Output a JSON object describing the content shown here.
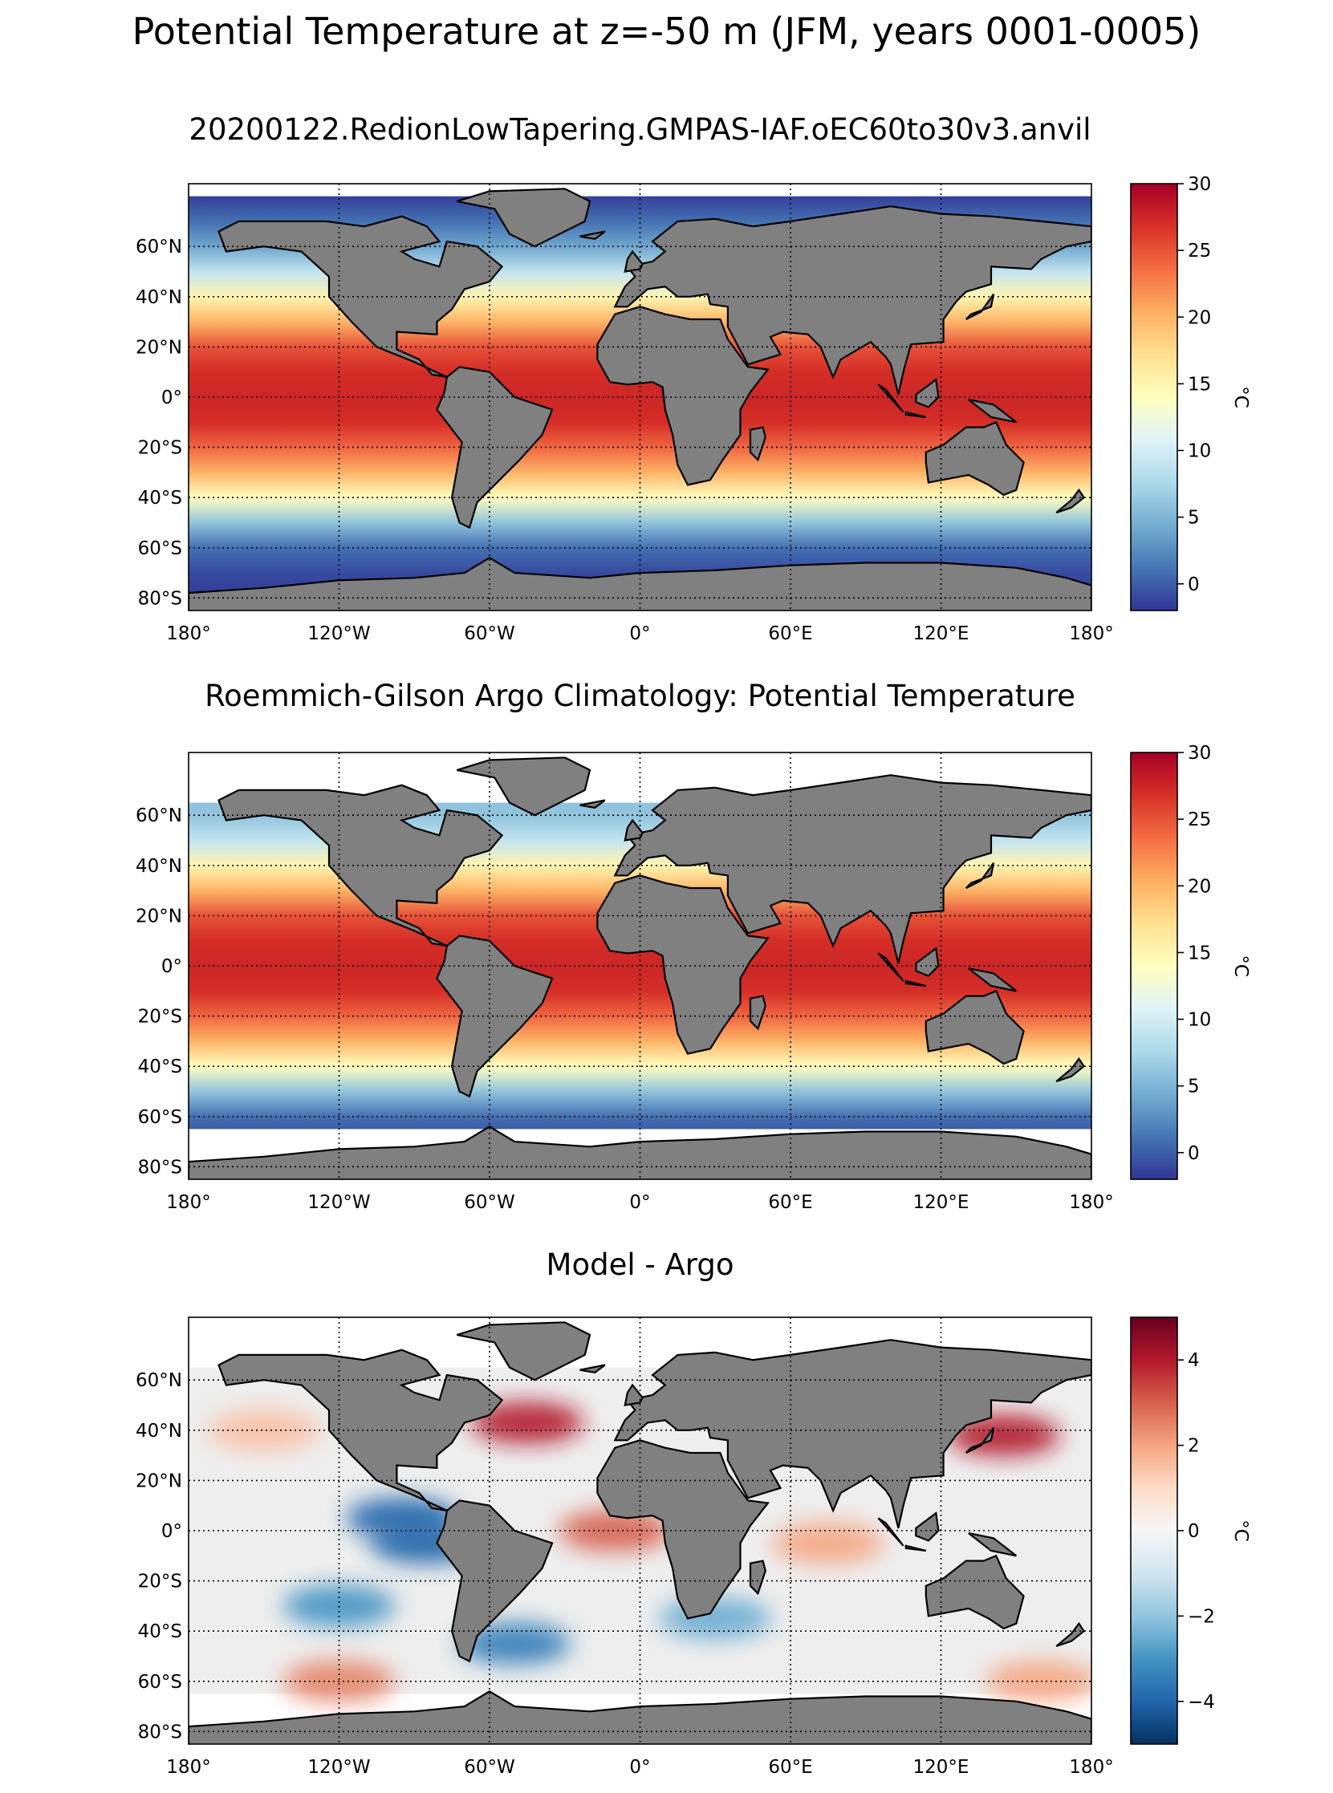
{
  "suptitle": "Potential Temperature at z=-50 m (JFM, years 0001-0005)",
  "panels": [
    {
      "title": "20200122.RedionLowTapering.GMPAS-IAF.oEC60to30v3.anvil"
    },
    {
      "title": "Roemmich-Gilson Argo Climatology: Potential Temperature"
    },
    {
      "title": "Model - Argo"
    }
  ],
  "chart_data": [
    {
      "type": "heatmap",
      "title": "20200122.RedionLowTapering.GMPAS-IAF.oEC60to30v3.anvil",
      "xlim": [
        -180,
        180
      ],
      "ylim": [
        -85,
        85
      ],
      "x_ticks": [
        -180,
        -120,
        -60,
        0,
        60,
        120,
        180
      ],
      "x_tick_labels": [
        "180°",
        "120°W",
        "60°W",
        "0°",
        "60°E",
        "120°E",
        "180°"
      ],
      "y_ticks": [
        60,
        40,
        20,
        0,
        -20,
        -40,
        -60,
        -80
      ],
      "y_tick_labels": [
        "60°N",
        "40°N",
        "20°N",
        "0°",
        "20°S",
        "40°S",
        "60°S",
        "80°S"
      ],
      "grid": true,
      "land_color": "#808080",
      "colormap": "RdYlBu_r",
      "colorbar": {
        "label": "°C",
        "vmin": -2,
        "vmax": 30,
        "ticks": [
          30,
          25,
          20,
          15,
          10,
          5,
          0
        ],
        "tick_labels": [
          "30",
          "25",
          "20",
          "15",
          "10",
          "5",
          "0"
        ]
      },
      "zonal_profile": {
        "lat": [
          80,
          70,
          60,
          50,
          40,
          30,
          20,
          10,
          0,
          -10,
          -20,
          -30,
          -40,
          -50,
          -60,
          -70,
          -80
        ],
        "value": [
          -1.5,
          1,
          4,
          9,
          15,
          20,
          25,
          27,
          27.5,
          27,
          24,
          20,
          14,
          6,
          1,
          -1,
          -1.8
        ]
      }
    },
    {
      "type": "heatmap",
      "title": "Roemmich-Gilson Argo Climatology: Potential Temperature",
      "xlim": [
        -180,
        180
      ],
      "ylim": [
        -85,
        85
      ],
      "x_ticks": [
        -180,
        -120,
        -60,
        0,
        60,
        120,
        180
      ],
      "x_tick_labels": [
        "180°",
        "120°W",
        "60°W",
        "0°",
        "60°E",
        "120°E",
        "180°"
      ],
      "y_ticks": [
        60,
        40,
        20,
        0,
        -20,
        -40,
        -60,
        -80
      ],
      "y_tick_labels": [
        "60°N",
        "40°N",
        "20°N",
        "0°",
        "20°S",
        "40°S",
        "60°S",
        "80°S"
      ],
      "grid": true,
      "land_color": "#808080",
      "colormap": "RdYlBu_r",
      "data_lat_range": [
        -65,
        65
      ],
      "colorbar": {
        "label": "°C",
        "vmin": -2,
        "vmax": 30,
        "ticks": [
          30,
          25,
          20,
          15,
          10,
          5,
          0
        ],
        "tick_labels": [
          "30",
          "25",
          "20",
          "15",
          "10",
          "5",
          "0"
        ]
      },
      "zonal_profile": {
        "lat": [
          65,
          60,
          50,
          40,
          30,
          20,
          10,
          0,
          -10,
          -20,
          -30,
          -40,
          -50,
          -60,
          -65
        ],
        "value": [
          6,
          6,
          9,
          15,
          20,
          25,
          27,
          27.5,
          27,
          24,
          20,
          14,
          6,
          1,
          0
        ]
      }
    },
    {
      "type": "heatmap",
      "title": "Model - Argo",
      "xlim": [
        -180,
        180
      ],
      "ylim": [
        -85,
        85
      ],
      "x_ticks": [
        -180,
        -120,
        -60,
        0,
        60,
        120,
        180
      ],
      "x_tick_labels": [
        "180°",
        "120°W",
        "60°W",
        "0°",
        "60°E",
        "120°E",
        "180°"
      ],
      "y_ticks": [
        60,
        40,
        20,
        0,
        -20,
        -40,
        -60,
        -80
      ],
      "y_tick_labels": [
        "60°N",
        "40°N",
        "20°N",
        "0°",
        "20°S",
        "40°S",
        "60°S",
        "80°S"
      ],
      "grid": true,
      "land_color": "#808080",
      "colormap": "RdBu_r",
      "data_lat_range": [
        -65,
        65
      ],
      "colorbar": {
        "label": "°C",
        "vmin": -5,
        "vmax": 5,
        "ticks": [
          4,
          2,
          0,
          -2,
          -4
        ],
        "tick_labels": [
          "4",
          "2",
          "0",
          "−2",
          "−4"
        ]
      },
      "anomalies": [
        {
          "lon": -150,
          "lat": 40,
          "value": 1.5
        },
        {
          "lon": -45,
          "lat": 43,
          "value": 4
        },
        {
          "lon": 145,
          "lat": 38,
          "value": 4
        },
        {
          "lon": -95,
          "lat": 5,
          "value": -4
        },
        {
          "lon": -85,
          "lat": -5,
          "value": -4
        },
        {
          "lon": -10,
          "lat": 0,
          "value": 3
        },
        {
          "lon": 75,
          "lat": -5,
          "value": 2
        },
        {
          "lon": -120,
          "lat": -30,
          "value": -3
        },
        {
          "lon": 30,
          "lat": -35,
          "value": -2.5
        },
        {
          "lon": -50,
          "lat": -45,
          "value": -3.5
        },
        {
          "lon": -120,
          "lat": -60,
          "value": 2.5
        },
        {
          "lon": 160,
          "lat": -60,
          "value": 2
        }
      ]
    }
  ]
}
